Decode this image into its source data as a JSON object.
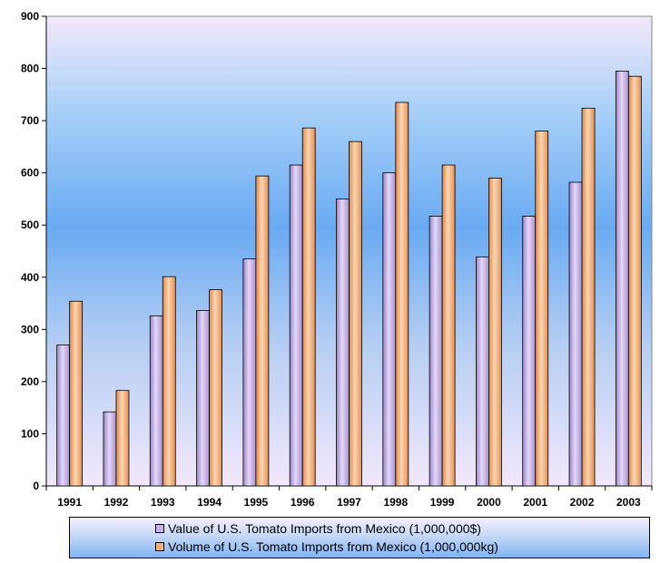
{
  "chart_data": {
    "type": "bar",
    "categories": [
      "1991",
      "1992",
      "1993",
      "1994",
      "1995",
      "1996",
      "1997",
      "1998",
      "1999",
      "2000",
      "2001",
      "2002",
      "2003"
    ],
    "series": [
      {
        "name": "Value of U.S. Tomato Imports from Mexico (1,000,000$)",
        "color": "#c8b4ec",
        "values": [
          270,
          142,
          326,
          336,
          435,
          615,
          550,
          600,
          517,
          439,
          517,
          582,
          795
        ]
      },
      {
        "name": "Volume of U.S. Tomato Imports from Mexico (1,000,000kg)",
        "color": "#f8b078",
        "values": [
          354,
          183,
          401,
          376,
          594,
          686,
          660,
          735,
          615,
          590,
          680,
          724,
          785
        ]
      }
    ],
    "yticks": [
      "0",
      "100",
      "200",
      "300",
      "400",
      "500",
      "600",
      "700",
      "800",
      "900"
    ],
    "ylim": [
      0,
      900
    ],
    "grid": false,
    "legend_position": "bottom"
  }
}
